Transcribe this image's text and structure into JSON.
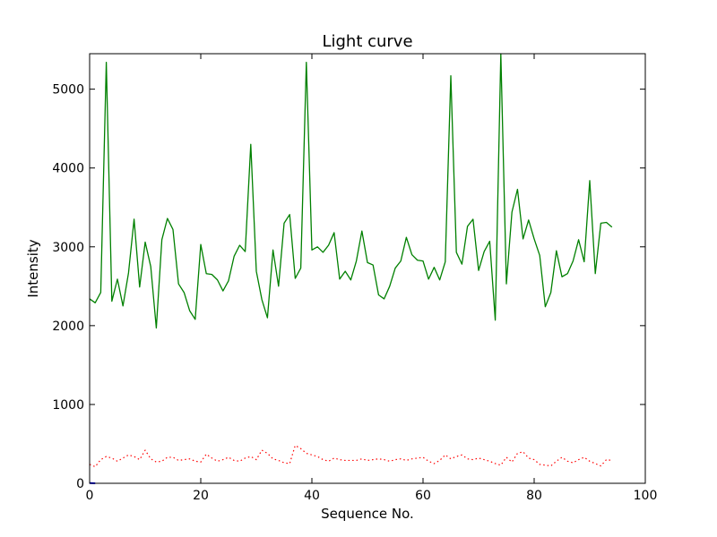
{
  "chart_data": {
    "type": "line",
    "title": "Light curve",
    "xlabel": "Sequence No.",
    "ylabel": "Intensity",
    "xlim": [
      0,
      100
    ],
    "ylim": [
      0,
      5450
    ],
    "xticks": [
      0,
      20,
      40,
      60,
      80,
      100
    ],
    "yticks": [
      0,
      1000,
      2000,
      3000,
      4000,
      5000
    ],
    "grid": false,
    "series": [
      {
        "color": "#008000",
        "style": "solid",
        "values": [
          2340,
          2290,
          2420,
          5340,
          2310,
          2590,
          2250,
          2670,
          3350,
          2490,
          3060,
          2750,
          1970,
          3090,
          3360,
          3220,
          2530,
          2420,
          2190,
          2080,
          3030,
          2660,
          2650,
          2580,
          2440,
          2570,
          2880,
          3020,
          2940,
          4300,
          2690,
          2330,
          2100,
          2960,
          2500,
          3300,
          3410,
          2600,
          2730,
          5340,
          2960,
          3000,
          2930,
          3020,
          3180,
          2590,
          2690,
          2580,
          2820,
          3200,
          2800,
          2770,
          2390,
          2340,
          2500,
          2730,
          2820,
          3120,
          2900,
          2830,
          2820,
          2590,
          2740,
          2580,
          2810,
          5170,
          2930,
          2780,
          3260,
          3350,
          2700,
          2940,
          3070,
          2070,
          5450,
          2530,
          3440,
          3730,
          3100,
          3340,
          3100,
          2890,
          2240,
          2420,
          2950,
          2620,
          2660,
          2820,
          3090,
          2810,
          3840,
          2660,
          3300,
          3310,
          3250
        ]
      },
      {
        "color": "#ff0000",
        "style": "dotted",
        "values": [
          240,
          210,
          300,
          340,
          320,
          280,
          320,
          360,
          340,
          300,
          420,
          310,
          270,
          280,
          330,
          330,
          290,
          300,
          310,
          280,
          270,
          370,
          320,
          280,
          300,
          330,
          290,
          280,
          320,
          340,
          300,
          420,
          380,
          310,
          290,
          260,
          250,
          480,
          440,
          380,
          360,
          340,
          300,
          280,
          320,
          300,
          290,
          290,
          290,
          310,
          290,
          300,
          310,
          300,
          280,
          300,
          310,
          290,
          310,
          320,
          330,
          280,
          250,
          290,
          360,
          310,
          340,
          360,
          310,
          300,
          320,
          300,
          280,
          250,
          230,
          330,
          270,
          380,
          400,
          320,
          300,
          240,
          230,
          220,
          280,
          330,
          280,
          260,
          300,
          330,
          280,
          250,
          220,
          300,
          290
        ]
      },
      {
        "color": "#0000ff",
        "style": "solid",
        "values": [
          3,
          0
        ]
      }
    ]
  }
}
